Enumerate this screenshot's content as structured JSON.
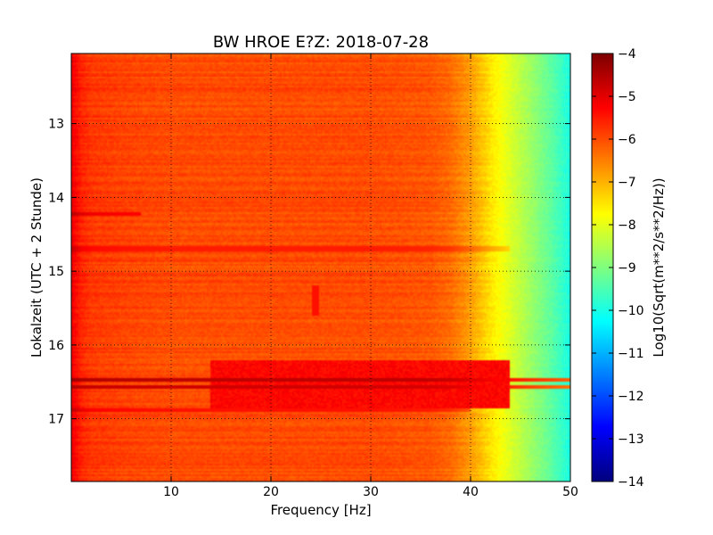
{
  "chart_data": {
    "type": "heatmap",
    "title": "BW HROE E?Z: 2018-07-28",
    "xlabel": "Frequency [Hz]",
    "ylabel": "Lokalzeit (UTC + 2 Stunde)",
    "xlim": [
      0,
      50
    ],
    "ylim": [
      17.85,
      12.05
    ],
    "y_inverted": true,
    "grid": true,
    "x_ticks": [
      10,
      20,
      30,
      40,
      50
    ],
    "y_ticks": [
      13,
      14,
      15,
      16,
      17
    ],
    "colorbar": {
      "label": "Log10(Sqrt(m**2/s**2/Hz))",
      "colormap": "jet",
      "vmin": -14,
      "vmax": -4,
      "ticks": [
        -4,
        -5,
        -6,
        -7,
        -8,
        -9,
        -10,
        -11,
        -12,
        -13,
        -14
      ]
    },
    "spectral_profile": {
      "frequency_hz": [
        0,
        1,
        2,
        5,
        10,
        20,
        30,
        36,
        38,
        40,
        42,
        44,
        46,
        48,
        50
      ],
      "log_amplitude": [
        -5.1,
        -5.6,
        -5.8,
        -5.9,
        -6.0,
        -6.0,
        -6.0,
        -6.1,
        -6.3,
        -6.8,
        -7.5,
        -8.1,
        -8.7,
        -9.3,
        -10.0
      ]
    },
    "features": [
      {
        "type": "strong_band",
        "time": 16.48,
        "freq_range": [
          0,
          50
        ],
        "log_amplitude": -4.6
      },
      {
        "type": "strong_band",
        "time": 16.58,
        "freq_range": [
          0,
          50
        ],
        "log_amplitude": -4.8
      },
      {
        "type": "elevated_band",
        "time_range": [
          16.2,
          16.85
        ],
        "freq_range": [
          14,
          44
        ],
        "log_amplitude": -5.3
      },
      {
        "type": "band",
        "time": 14.7,
        "freq_range": [
          0,
          44
        ],
        "log_amplitude": -5.5
      },
      {
        "type": "band",
        "time": 16.88,
        "freq_range": [
          0,
          40
        ],
        "log_amplitude": -5.4
      },
      {
        "type": "band",
        "time": 14.22,
        "freq_range": [
          0,
          7
        ],
        "log_amplitude": -5.3
      },
      {
        "type": "line",
        "freq": 24.5,
        "time_range": [
          15.2,
          15.6
        ],
        "log_amplitude": -5.4
      }
    ]
  }
}
